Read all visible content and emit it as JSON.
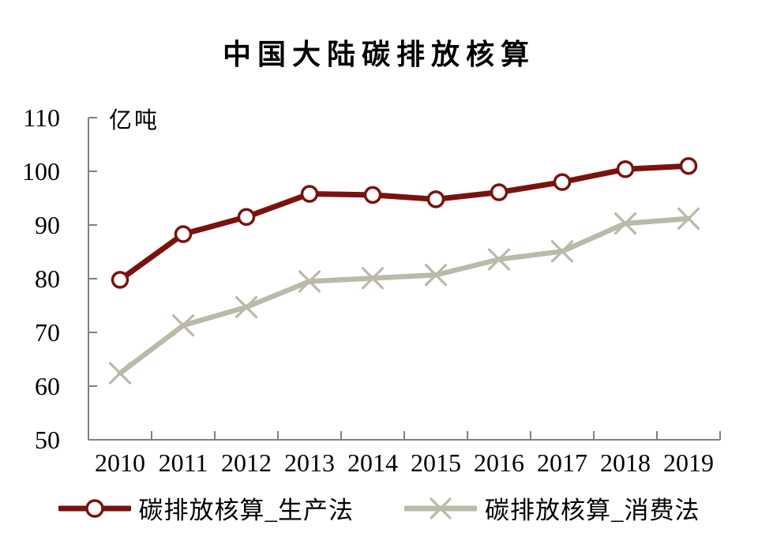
{
  "title": "中国大陆碳排放核算",
  "chart_data": {
    "type": "line",
    "title": "中国大陆碳排放核算",
    "ylabel": "亿吨",
    "xlabel": "",
    "ylim": [
      50,
      110
    ],
    "yticks": [
      50,
      60,
      70,
      80,
      90,
      100,
      110
    ],
    "grid": false,
    "legend_position": "bottom",
    "axis_color": "#808080",
    "categories": [
      "2010",
      "2011",
      "2012",
      "2013",
      "2014",
      "2015",
      "2016",
      "2017",
      "2018",
      "2019"
    ],
    "series": [
      {
        "id": "production",
        "name": "碳排放核算_生产法",
        "color": "#7A120D",
        "marker": "circle",
        "values": [
          79.8,
          88.3,
          91.5,
          95.8,
          95.6,
          94.8,
          96.1,
          98.0,
          100.4,
          101.0
        ]
      },
      {
        "id": "consumption",
        "name": "碳排放核算_消费法",
        "color": "#BBB9A8",
        "marker": "x",
        "values": [
          62.4,
          71.3,
          74.7,
          79.5,
          80.1,
          80.7,
          83.6,
          85.1,
          90.3,
          91.2
        ]
      }
    ]
  }
}
